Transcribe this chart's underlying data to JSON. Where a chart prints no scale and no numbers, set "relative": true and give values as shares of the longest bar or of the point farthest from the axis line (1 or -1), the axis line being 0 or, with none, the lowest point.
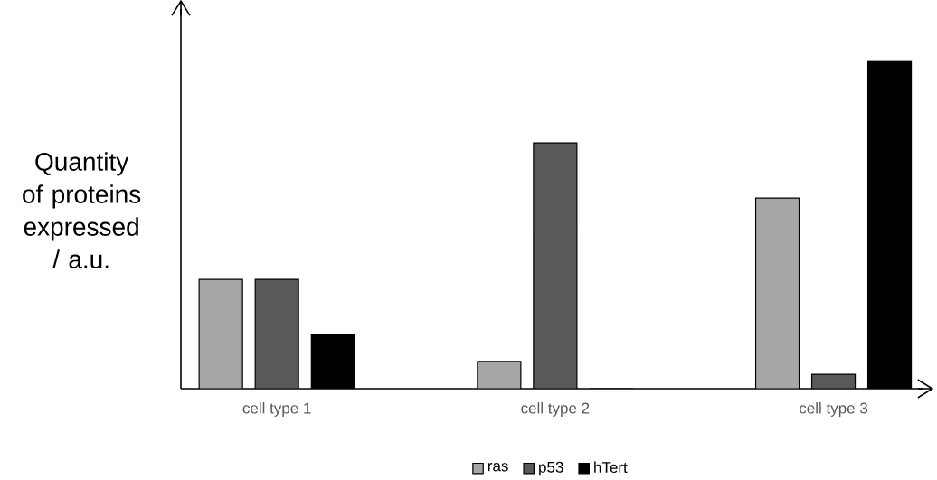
{
  "chart_data": {
    "type": "bar",
    "relative": true,
    "ylabel": "Quantity of proteins expressed / a.u.",
    "categories": [
      "cell type 1",
      "cell type 2",
      "cell type 3"
    ],
    "series": [
      {
        "name": "ras",
        "color": "#a6a6a6",
        "values": [
          0.333,
          0.083,
          0.581
        ]
      },
      {
        "name": "p53",
        "color": "#595959",
        "values": [
          0.333,
          0.749,
          0.044
        ]
      },
      {
        "name": "hTert",
        "color": "#000000",
        "values": [
          0.165,
          0,
          1
        ]
      }
    ],
    "legend": "bottom"
  }
}
